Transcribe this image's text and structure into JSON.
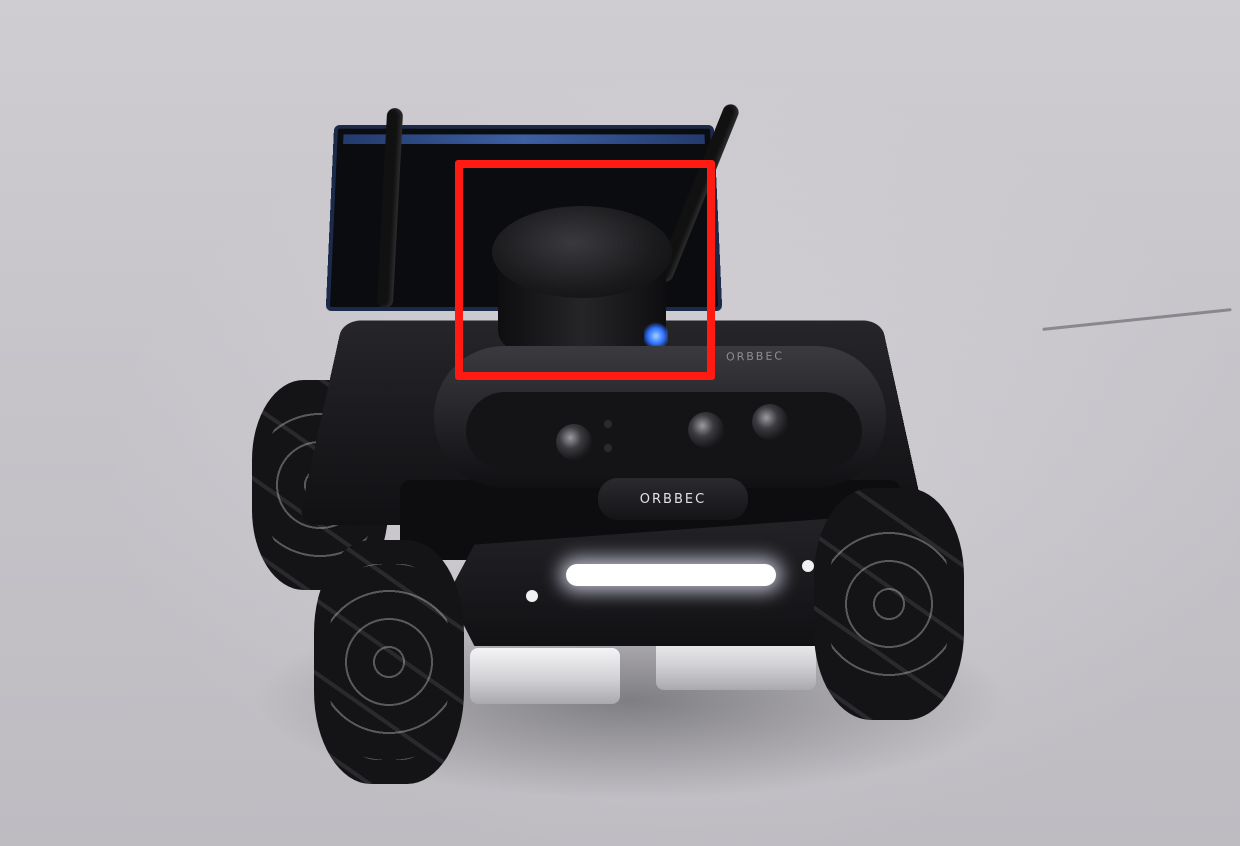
{
  "scene": {
    "camera_brand_front": "ORBBEC",
    "camera_brand_top": "ORBBEC",
    "highlight_color": "#ff1a12",
    "lidar_led_color": "#2b6dff",
    "light_bar_color": "#ffffff"
  }
}
